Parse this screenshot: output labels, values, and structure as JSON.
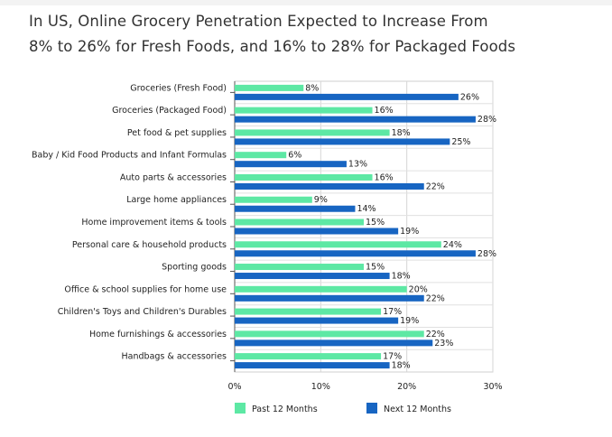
{
  "chart_data": {
    "type": "bar",
    "orientation": "horizontal",
    "title": "In US, Online Grocery Penetration Expected to Increase From\n8% to 26% for Fresh Foods, and 16% to 28% for Packaged Foods",
    "categories": [
      "Groceries (Fresh Food)",
      "Groceries (Packaged Food)",
      "Pet food & pet supplies",
      "Baby / Kid Food Products and Infant Formulas",
      "Auto parts & accessories",
      "Large home appliances",
      "Home improvement items & tools",
      "Personal care & household products",
      "Sporting goods",
      "Office & school supplies for home use",
      "Children's Toys and Children's Durables",
      "Home furnishings & accessories",
      "Handbags & accessories"
    ],
    "series": [
      {
        "name": "Past 12 Months",
        "color": "#5de8a4",
        "values": [
          8,
          16,
          18,
          6,
          16,
          9,
          15,
          24,
          15,
          20,
          17,
          22,
          17
        ],
        "labels": [
          "8%",
          "16%",
          "18%",
          "6%",
          "16%",
          "9%",
          "15%",
          "24%",
          "15%",
          "20%",
          "17%",
          "22%",
          "17%"
        ]
      },
      {
        "name": "Next 12 Months",
        "color": "#1765c2",
        "values": [
          26,
          28,
          25,
          13,
          22,
          14,
          19,
          28,
          18,
          22,
          19,
          23,
          18
        ],
        "labels": [
          "26%",
          "28%",
          "25%",
          "13%",
          "22%",
          "14%",
          "19%",
          "28%",
          "18%",
          "22%",
          "19%",
          "23%",
          "18%"
        ]
      }
    ],
    "xlim": [
      0,
      30
    ],
    "xticks": [
      0,
      10,
      20,
      30
    ],
    "xtick_labels": [
      "0%",
      "10%",
      "20%",
      "30%"
    ],
    "grid": true,
    "legend_position": "bottom"
  }
}
